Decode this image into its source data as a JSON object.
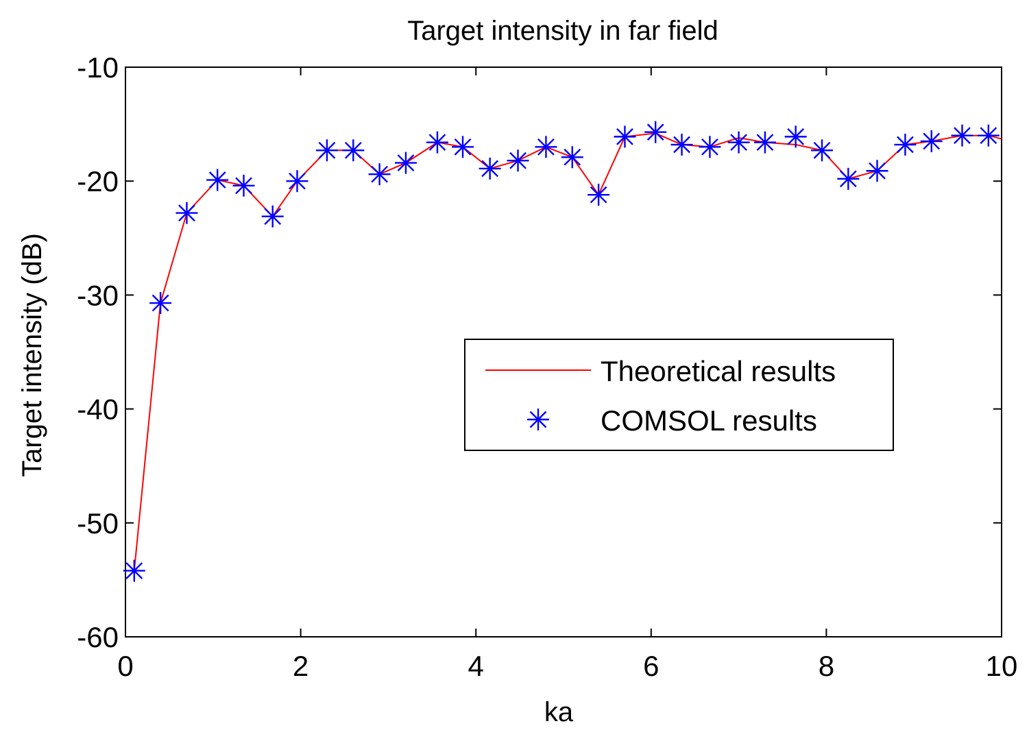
{
  "chart_data": {
    "type": "line",
    "title": "Target intensity in far field",
    "xlabel": "ka",
    "ylabel": "Target intensity (dB)",
    "xlim": [
      0,
      10
    ],
    "ylim": [
      -60,
      -10
    ],
    "xticks": [
      0,
      2,
      4,
      6,
      8,
      10
    ],
    "yticks": [
      -10,
      -20,
      -30,
      -40,
      -50,
      -60
    ],
    "xtick_labels": [
      "0",
      "2",
      "4",
      "6",
      "8",
      "10"
    ],
    "ytick_labels": [
      "-10",
      "-20",
      "-30",
      "-40",
      "-50",
      "-60"
    ],
    "grid": false,
    "legend_position": "center-right",
    "series": [
      {
        "name": "Theoretical results",
        "style": "line",
        "color": "#ff0000",
        "x": [
          0.1,
          0.4,
          0.7,
          1.05,
          1.35,
          1.68,
          1.96,
          2.3,
          2.6,
          2.9,
          3.2,
          3.56,
          3.85,
          4.16,
          4.48,
          4.8,
          5.1,
          5.4,
          5.7,
          6.05,
          6.35,
          6.67,
          7.0,
          7.3,
          7.65,
          7.95,
          8.25,
          8.58,
          8.9,
          9.2,
          9.55,
          9.85,
          10.0
        ],
        "y": [
          -54.2,
          -30.7,
          -22.8,
          -19.9,
          -20.4,
          -23.1,
          -20.0,
          -17.3,
          -17.3,
          -19.4,
          -18.4,
          -16.6,
          -17.0,
          -18.9,
          -18.2,
          -17.0,
          -17.9,
          -21.2,
          -16.1,
          -15.8,
          -16.8,
          -17.0,
          -16.2,
          -16.6,
          -16.8,
          -17.3,
          -19.8,
          -19.1,
          -16.8,
          -16.5,
          -16.0,
          -16.0,
          -16.3
        ]
      },
      {
        "name": "COMSOL results",
        "style": "marker",
        "marker": "asterisk",
        "color": "#0000ff",
        "x": [
          0.1,
          0.4,
          0.7,
          1.05,
          1.35,
          1.68,
          1.96,
          2.3,
          2.6,
          2.9,
          3.2,
          3.56,
          3.85,
          4.16,
          4.48,
          4.8,
          5.1,
          5.4,
          5.7,
          6.05,
          6.35,
          6.67,
          7.0,
          7.3,
          7.65,
          7.95,
          8.25,
          8.58,
          8.9,
          9.2,
          9.55,
          9.85
        ],
        "y": [
          -54.2,
          -30.7,
          -22.8,
          -19.9,
          -20.4,
          -23.1,
          -20.0,
          -17.3,
          -17.3,
          -19.4,
          -18.4,
          -16.6,
          -17.0,
          -18.9,
          -18.2,
          -17.0,
          -17.9,
          -21.2,
          -16.1,
          -15.7,
          -16.8,
          -17.0,
          -16.6,
          -16.6,
          -16.1,
          -17.3,
          -19.8,
          -19.1,
          -16.8,
          -16.5,
          -16.0,
          -16.0
        ]
      }
    ]
  }
}
